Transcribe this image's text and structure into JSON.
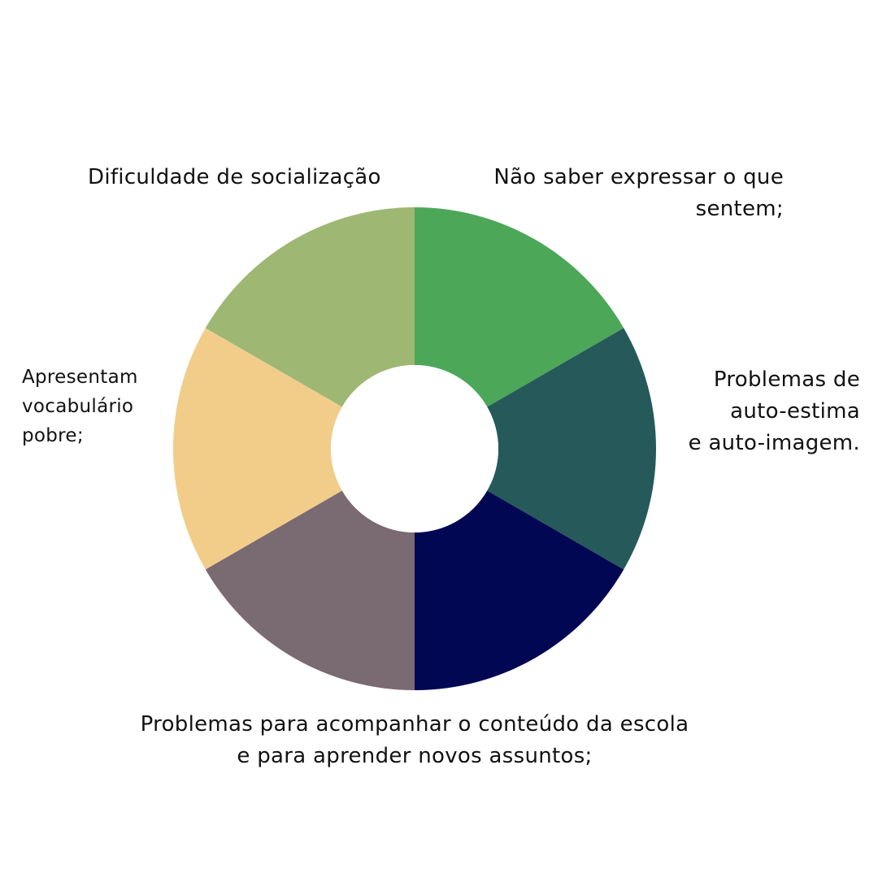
{
  "diagram": {
    "segments": [
      {
        "id": "green",
        "color": "#4CA758"
      },
      {
        "id": "teal",
        "color": "#265A5A"
      },
      {
        "id": "navy",
        "color": "#010753"
      },
      {
        "id": "mauve",
        "color": "#7A6A72"
      },
      {
        "id": "sand",
        "color": "#F1CD89"
      },
      {
        "id": "sage",
        "color": "#9EB873"
      }
    ],
    "center_color": "#FFFFFF"
  },
  "labels": {
    "top_left": "Dificuldade de socialização",
    "top_right": "Não saber expressar o que\nsentem;",
    "right": "Problemas de\nauto-estima\ne auto-imagem.",
    "left": "Apresentam\nvocabulário\npobre;",
    "bottom": "Problemas para acompanhar o conteúdo da escola\ne para aprender novos assuntos;"
  }
}
